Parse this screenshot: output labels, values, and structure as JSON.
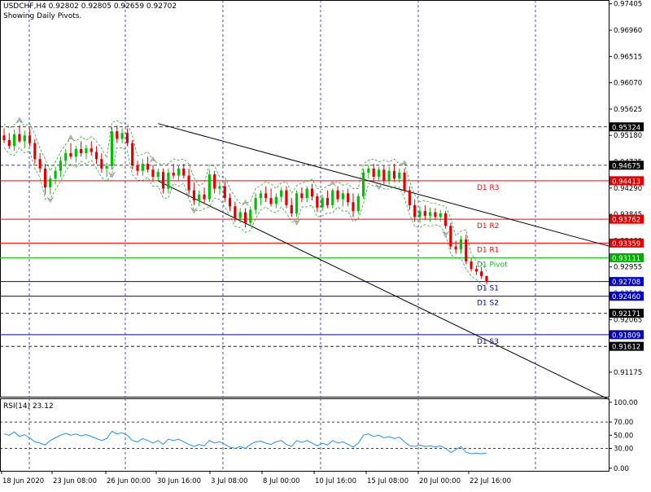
{
  "header": {
    "symbol_line": "USDCHF,H4  0.92802 0.92805 0.92659 0.92702",
    "subtitle": "Showing Daily Pivots."
  },
  "chart_data": [
    {
      "type": "candlestick",
      "symbol": "USDCHF",
      "timeframe": "H4",
      "ohlc_last": {
        "open": 0.92802,
        "high": 0.92805,
        "low": 0.92659,
        "close": 0.92702
      },
      "ylim": [
        0.9076,
        0.9747
      ],
      "price_ticks": [
        "0.97405",
        "0.96960",
        "0.96515",
        "0.96070",
        "0.95625",
        "0.95180",
        "0.94735",
        "0.94290",
        "0.93845",
        "0.93400",
        "0.92955",
        "0.92510",
        "0.92065",
        "0.91620",
        "0.91175"
      ],
      "x_labels": [
        "18 Jun 2020",
        "23 Jun 08:00",
        "26 Jun 00:00",
        "30 Jun 16:00",
        "3 Jul 08:00",
        "8 Jul 00:00",
        "10 Jul 16:00",
        "15 Jul 08:00",
        "20 Jul 00:00",
        "22 Jul 16:00"
      ],
      "price_tags": [
        {
          "value": "0.95324",
          "style": "black"
        },
        {
          "value": "0.94675",
          "style": "black"
        },
        {
          "value": "0.94413",
          "style": "red"
        },
        {
          "value": "0.93762",
          "style": "red"
        },
        {
          "value": "0.93359",
          "style": "red"
        },
        {
          "value": "0.93111",
          "style": "green"
        },
        {
          "value": "0.92708",
          "style": "blue"
        },
        {
          "value": "0.92460",
          "style": "blue"
        },
        {
          "value": "0.92171",
          "style": "black"
        },
        {
          "value": "0.91809",
          "style": "blue"
        },
        {
          "value": "0.91612",
          "style": "black"
        }
      ],
      "pivot_levels": [
        {
          "name": "D1 R3",
          "value": 0.94413,
          "color": "#ff0000"
        },
        {
          "name": "D1 R2",
          "value": 0.93762,
          "color": "#ff0000"
        },
        {
          "name": "D1 R1",
          "value": 0.93359,
          "color": "#ff0000"
        },
        {
          "name": "D1 Pivot",
          "value": 0.93111,
          "color": "#00c000"
        },
        {
          "name": "D1 S1",
          "value": 0.92708,
          "color": "#0000c0"
        },
        {
          "name": "D1 S2",
          "value": 0.9246,
          "color": "#0000c0"
        },
        {
          "name": "D1 S3",
          "value": 0.91809,
          "color": "#0000c0"
        }
      ],
      "dashed_levels": [
        0.95324,
        0.94675,
        0.92171,
        0.91612
      ],
      "trend_lines": [
        {
          "x": [
            30,
            91
          ],
          "y": [
            0.9538,
            0.9394
          ]
        },
        {
          "x": [
            30,
            92
          ],
          "y": [
            0.9441,
            0.918
          ]
        }
      ],
      "candles": [
        {
          "o": 0.9518,
          "h": 0.953,
          "l": 0.9505,
          "c": 0.951
        },
        {
          "o": 0.951,
          "h": 0.9522,
          "l": 0.9495,
          "c": 0.95
        },
        {
          "o": 0.95,
          "h": 0.9528,
          "l": 0.9492,
          "c": 0.952
        },
        {
          "o": 0.952,
          "h": 0.9535,
          "l": 0.9505,
          "c": 0.9508
        },
        {
          "o": 0.9508,
          "h": 0.9526,
          "l": 0.9496,
          "c": 0.9518
        },
        {
          "o": 0.9518,
          "h": 0.953,
          "l": 0.95,
          "c": 0.9505
        },
        {
          "o": 0.9505,
          "h": 0.9512,
          "l": 0.947,
          "c": 0.9478
        },
        {
          "o": 0.9478,
          "h": 0.9488,
          "l": 0.9455,
          "c": 0.9462
        },
        {
          "o": 0.9462,
          "h": 0.947,
          "l": 0.9418,
          "c": 0.943
        },
        {
          "o": 0.943,
          "h": 0.945,
          "l": 0.9418,
          "c": 0.9445
        },
        {
          "o": 0.9445,
          "h": 0.9465,
          "l": 0.9435,
          "c": 0.9458
        },
        {
          "o": 0.9458,
          "h": 0.9482,
          "l": 0.9448,
          "c": 0.9475
        },
        {
          "o": 0.9475,
          "h": 0.9495,
          "l": 0.9465,
          "c": 0.9488
        },
        {
          "o": 0.9488,
          "h": 0.9505,
          "l": 0.9478,
          "c": 0.9482
        },
        {
          "o": 0.9482,
          "h": 0.95,
          "l": 0.9472,
          "c": 0.9495
        },
        {
          "o": 0.9495,
          "h": 0.9508,
          "l": 0.9482,
          "c": 0.9488
        },
        {
          "o": 0.9488,
          "h": 0.9502,
          "l": 0.9478,
          "c": 0.9496
        },
        {
          "o": 0.9496,
          "h": 0.9508,
          "l": 0.9484,
          "c": 0.949
        },
        {
          "o": 0.949,
          "h": 0.95,
          "l": 0.947,
          "c": 0.9478
        },
        {
          "o": 0.9478,
          "h": 0.9488,
          "l": 0.9455,
          "c": 0.9462
        },
        {
          "o": 0.9462,
          "h": 0.9472,
          "l": 0.9448,
          "c": 0.9466
        },
        {
          "o": 0.9466,
          "h": 0.9532,
          "l": 0.946,
          "c": 0.9525
        },
        {
          "o": 0.9525,
          "h": 0.9535,
          "l": 0.9505,
          "c": 0.9512
        },
        {
          "o": 0.9512,
          "h": 0.953,
          "l": 0.9505,
          "c": 0.9522
        },
        {
          "o": 0.9522,
          "h": 0.953,
          "l": 0.95,
          "c": 0.9505
        },
        {
          "o": 0.9505,
          "h": 0.951,
          "l": 0.946,
          "c": 0.9468
        },
        {
          "o": 0.9468,
          "h": 0.9475,
          "l": 0.945,
          "c": 0.9458
        },
        {
          "o": 0.9458,
          "h": 0.9478,
          "l": 0.945,
          "c": 0.947
        },
        {
          "o": 0.947,
          "h": 0.9482,
          "l": 0.9455,
          "c": 0.946
        },
        {
          "o": 0.946,
          "h": 0.9468,
          "l": 0.944,
          "c": 0.9448
        },
        {
          "o": 0.9448,
          "h": 0.9462,
          "l": 0.944,
          "c": 0.9456
        },
        {
          "o": 0.9456,
          "h": 0.9462,
          "l": 0.942,
          "c": 0.9428
        },
        {
          "o": 0.9428,
          "h": 0.9462,
          "l": 0.942,
          "c": 0.9455
        },
        {
          "o": 0.9455,
          "h": 0.947,
          "l": 0.9445,
          "c": 0.945
        },
        {
          "o": 0.945,
          "h": 0.9468,
          "l": 0.944,
          "c": 0.9462
        },
        {
          "o": 0.9462,
          "h": 0.947,
          "l": 0.9445,
          "c": 0.945
        },
        {
          "o": 0.945,
          "h": 0.9462,
          "l": 0.9418,
          "c": 0.9425
        },
        {
          "o": 0.9425,
          "h": 0.9438,
          "l": 0.94,
          "c": 0.9408
        },
        {
          "o": 0.9408,
          "h": 0.9425,
          "l": 0.9398,
          "c": 0.9418
        },
        {
          "o": 0.9418,
          "h": 0.943,
          "l": 0.9402,
          "c": 0.941
        },
        {
          "o": 0.941,
          "h": 0.946,
          "l": 0.9405,
          "c": 0.9452
        },
        {
          "o": 0.9452,
          "h": 0.9458,
          "l": 0.942,
          "c": 0.9428
        },
        {
          "o": 0.9428,
          "h": 0.944,
          "l": 0.9418,
          "c": 0.9432
        },
        {
          "o": 0.9432,
          "h": 0.944,
          "l": 0.9405,
          "c": 0.9412
        },
        {
          "o": 0.9412,
          "h": 0.942,
          "l": 0.939,
          "c": 0.9398
        },
        {
          "o": 0.9398,
          "h": 0.9406,
          "l": 0.9372,
          "c": 0.9378
        },
        {
          "o": 0.9378,
          "h": 0.9395,
          "l": 0.937,
          "c": 0.9388
        },
        {
          "o": 0.9388,
          "h": 0.9395,
          "l": 0.9362,
          "c": 0.937
        },
        {
          "o": 0.937,
          "h": 0.9398,
          "l": 0.9365,
          "c": 0.9392
        },
        {
          "o": 0.9392,
          "h": 0.942,
          "l": 0.9385,
          "c": 0.9412
        },
        {
          "o": 0.9412,
          "h": 0.9425,
          "l": 0.94,
          "c": 0.942
        },
        {
          "o": 0.942,
          "h": 0.9432,
          "l": 0.9405,
          "c": 0.9412
        },
        {
          "o": 0.9412,
          "h": 0.9428,
          "l": 0.9398,
          "c": 0.9402
        },
        {
          "o": 0.9402,
          "h": 0.942,
          "l": 0.9395,
          "c": 0.9414
        },
        {
          "o": 0.9414,
          "h": 0.943,
          "l": 0.9405,
          "c": 0.9425
        },
        {
          "o": 0.9425,
          "h": 0.9432,
          "l": 0.9395,
          "c": 0.94
        },
        {
          "o": 0.94,
          "h": 0.9412,
          "l": 0.938,
          "c": 0.9386
        },
        {
          "o": 0.9386,
          "h": 0.9425,
          "l": 0.938,
          "c": 0.942
        },
        {
          "o": 0.942,
          "h": 0.943,
          "l": 0.9405,
          "c": 0.9412
        },
        {
          "o": 0.9412,
          "h": 0.9432,
          "l": 0.9405,
          "c": 0.9428
        },
        {
          "o": 0.9428,
          "h": 0.9436,
          "l": 0.9408,
          "c": 0.9415
        },
        {
          "o": 0.9415,
          "h": 0.942,
          "l": 0.9388,
          "c": 0.9396
        },
        {
          "o": 0.9396,
          "h": 0.9418,
          "l": 0.939,
          "c": 0.9412
        },
        {
          "o": 0.9412,
          "h": 0.9425,
          "l": 0.9395,
          "c": 0.94
        },
        {
          "o": 0.94,
          "h": 0.9428,
          "l": 0.9395,
          "c": 0.9425
        },
        {
          "o": 0.9425,
          "h": 0.9432,
          "l": 0.9405,
          "c": 0.941
        },
        {
          "o": 0.941,
          "h": 0.9426,
          "l": 0.9398,
          "c": 0.942
        },
        {
          "o": 0.942,
          "h": 0.9428,
          "l": 0.9398,
          "c": 0.9405
        },
        {
          "o": 0.9405,
          "h": 0.942,
          "l": 0.938,
          "c": 0.939
        },
        {
          "o": 0.939,
          "h": 0.942,
          "l": 0.9385,
          "c": 0.9415
        },
        {
          "o": 0.9415,
          "h": 0.9462,
          "l": 0.941,
          "c": 0.9455
        },
        {
          "o": 0.9455,
          "h": 0.9468,
          "l": 0.9445,
          "c": 0.9462
        },
        {
          "o": 0.9462,
          "h": 0.947,
          "l": 0.944,
          "c": 0.9448
        },
        {
          "o": 0.9448,
          "h": 0.9465,
          "l": 0.944,
          "c": 0.946
        },
        {
          "o": 0.946,
          "h": 0.9468,
          "l": 0.9436,
          "c": 0.9442
        },
        {
          "o": 0.9442,
          "h": 0.9465,
          "l": 0.9435,
          "c": 0.9458
        },
        {
          "o": 0.9458,
          "h": 0.947,
          "l": 0.944,
          "c": 0.9445
        },
        {
          "o": 0.9445,
          "h": 0.9462,
          "l": 0.9438,
          "c": 0.9455
        },
        {
          "o": 0.9455,
          "h": 0.9462,
          "l": 0.942,
          "c": 0.9425
        },
        {
          "o": 0.9425,
          "h": 0.9432,
          "l": 0.9392,
          "c": 0.94
        },
        {
          "o": 0.94,
          "h": 0.941,
          "l": 0.9372,
          "c": 0.938
        },
        {
          "o": 0.938,
          "h": 0.9398,
          "l": 0.937,
          "c": 0.939
        },
        {
          "o": 0.939,
          "h": 0.94,
          "l": 0.9375,
          "c": 0.9382
        },
        {
          "o": 0.9382,
          "h": 0.9396,
          "l": 0.9372,
          "c": 0.9388
        },
        {
          "o": 0.9388,
          "h": 0.9395,
          "l": 0.9375,
          "c": 0.938
        },
        {
          "o": 0.938,
          "h": 0.9392,
          "l": 0.9372,
          "c": 0.9386
        },
        {
          "o": 0.9386,
          "h": 0.939,
          "l": 0.936,
          "c": 0.9365
        },
        {
          "o": 0.9365,
          "h": 0.937,
          "l": 0.9325,
          "c": 0.933
        },
        {
          "o": 0.933,
          "h": 0.934,
          "l": 0.9318,
          "c": 0.9325
        },
        {
          "o": 0.9325,
          "h": 0.9348,
          "l": 0.9318,
          "c": 0.9342
        },
        {
          "o": 0.9342,
          "h": 0.935,
          "l": 0.93,
          "c": 0.9305
        },
        {
          "o": 0.9305,
          "h": 0.931,
          "l": 0.9288,
          "c": 0.9292
        },
        {
          "o": 0.9292,
          "h": 0.9298,
          "l": 0.9282,
          "c": 0.9288
        },
        {
          "o": 0.9288,
          "h": 0.9295,
          "l": 0.9275,
          "c": 0.928
        },
        {
          "o": 0.92802,
          "h": 0.92805,
          "l": 0.92659,
          "c": 0.92702
        }
      ]
    },
    {
      "type": "line",
      "title": "RSI(14) 23.12",
      "ylim": [
        -4,
        106
      ],
      "y_ticks": [
        "100.00",
        "70.00",
        "50.00",
        "30.00",
        "0.00"
      ],
      "levels": [
        70,
        30
      ],
      "values": [
        52,
        50,
        55,
        48,
        51,
        46,
        40,
        38,
        35,
        42,
        46,
        50,
        53,
        50,
        52,
        49,
        51,
        48,
        45,
        42,
        45,
        56,
        52,
        54,
        50,
        42,
        40,
        45,
        42,
        38,
        42,
        36,
        44,
        42,
        44,
        40,
        36,
        33,
        36,
        34,
        42,
        38,
        40,
        36,
        32,
        30,
        33,
        30,
        36,
        40,
        41,
        38,
        36,
        40,
        42,
        36,
        33,
        42,
        39,
        42,
        38,
        34,
        38,
        35,
        42,
        38,
        40,
        36,
        32,
        38,
        50,
        52,
        48,
        50,
        46,
        48,
        45,
        47,
        40,
        34,
        33,
        35,
        33,
        34,
        32,
        34,
        30,
        24,
        28,
        33,
        24,
        22,
        23,
        22,
        23.12
      ]
    }
  ]
}
